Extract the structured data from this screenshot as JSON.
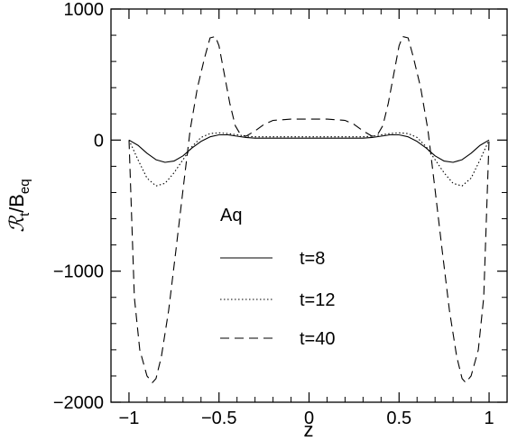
{
  "chart_data": {
    "type": "line",
    "title": "",
    "xlabel": "z",
    "ylabel_main": "ℛ",
    "ylabel_main_sub": "t",
    "ylabel_div": "/B",
    "ylabel_div_sub": "eq",
    "xlim": [
      -1.1,
      1.1
    ],
    "ylim": [
      -2000,
      1000
    ],
    "x_ticks": [
      -1,
      -0.5,
      0,
      0.5,
      1
    ],
    "x_tick_labels": [
      "−1",
      "−0.5",
      "0",
      "0.5",
      "1"
    ],
    "y_ticks": [
      -2000,
      -1000,
      0,
      1000
    ],
    "y_tick_labels": [
      "−2000",
      "−1000",
      "0",
      "1000"
    ],
    "grid": false,
    "legend_title": "Aq",
    "legend_position": "center-left",
    "series": [
      {
        "name": "t=8",
        "style": "solid",
        "x": [
          -1,
          -0.95,
          -0.9,
          -0.85,
          -0.8,
          -0.75,
          -0.7,
          -0.65,
          -0.6,
          -0.55,
          -0.5,
          -0.45,
          -0.4,
          -0.35,
          -0.3,
          -0.2,
          -0.1,
          0,
          0.1,
          0.2,
          0.3,
          0.35,
          0.4,
          0.45,
          0.5,
          0.55,
          0.6,
          0.65,
          0.7,
          0.75,
          0.8,
          0.85,
          0.9,
          0.95,
          1
        ],
        "y": [
          0,
          -40,
          -100,
          -150,
          -170,
          -160,
          -120,
          -60,
          -10,
          25,
          40,
          40,
          30,
          20,
          15,
          15,
          15,
          15,
          15,
          15,
          15,
          20,
          30,
          40,
          40,
          25,
          -10,
          -60,
          -120,
          -160,
          -170,
          -150,
          -100,
          -40,
          0
        ]
      },
      {
        "name": "t=12",
        "style": "dotted",
        "x": [
          -1,
          -0.95,
          -0.9,
          -0.85,
          -0.8,
          -0.75,
          -0.7,
          -0.65,
          -0.6,
          -0.55,
          -0.5,
          -0.45,
          -0.4,
          -0.35,
          -0.3,
          -0.2,
          -0.1,
          0,
          0.1,
          0.2,
          0.3,
          0.35,
          0.4,
          0.45,
          0.5,
          0.55,
          0.6,
          0.65,
          0.7,
          0.75,
          0.8,
          0.85,
          0.9,
          0.95,
          1
        ],
        "y": [
          0,
          -150,
          -290,
          -350,
          -330,
          -250,
          -150,
          -50,
          20,
          50,
          55,
          50,
          40,
          30,
          25,
          25,
          25,
          25,
          25,
          25,
          25,
          30,
          40,
          50,
          55,
          50,
          20,
          -50,
          -150,
          -250,
          -330,
          -350,
          -290,
          -150,
          0
        ]
      },
      {
        "name": "t=40",
        "style": "dashed",
        "x": [
          -1,
          -0.97,
          -0.94,
          -0.9,
          -0.87,
          -0.85,
          -0.82,
          -0.78,
          -0.74,
          -0.7,
          -0.66,
          -0.62,
          -0.58,
          -0.55,
          -0.52,
          -0.5,
          -0.47,
          -0.44,
          -0.41,
          -0.38,
          -0.35,
          -0.3,
          -0.25,
          -0.2,
          -0.1,
          0,
          0.1,
          0.2,
          0.25,
          0.3,
          0.35,
          0.38,
          0.41,
          0.44,
          0.47,
          0.5,
          0.52,
          0.55,
          0.58,
          0.62,
          0.66,
          0.7,
          0.74,
          0.78,
          0.82,
          0.85,
          0.87,
          0.9,
          0.94,
          0.97,
          1
        ],
        "y": [
          0,
          -1200,
          -1600,
          -1800,
          -1850,
          -1820,
          -1650,
          -1300,
          -850,
          -380,
          80,
          400,
          630,
          780,
          790,
          720,
          500,
          280,
          110,
          40,
          30,
          70,
          120,
          150,
          160,
          160,
          160,
          150,
          120,
          70,
          30,
          40,
          110,
          280,
          500,
          720,
          790,
          780,
          630,
          400,
          80,
          -380,
          -850,
          -1300,
          -1650,
          -1820,
          -1850,
          -1800,
          -1600,
          -1200,
          0
        ]
      }
    ]
  }
}
